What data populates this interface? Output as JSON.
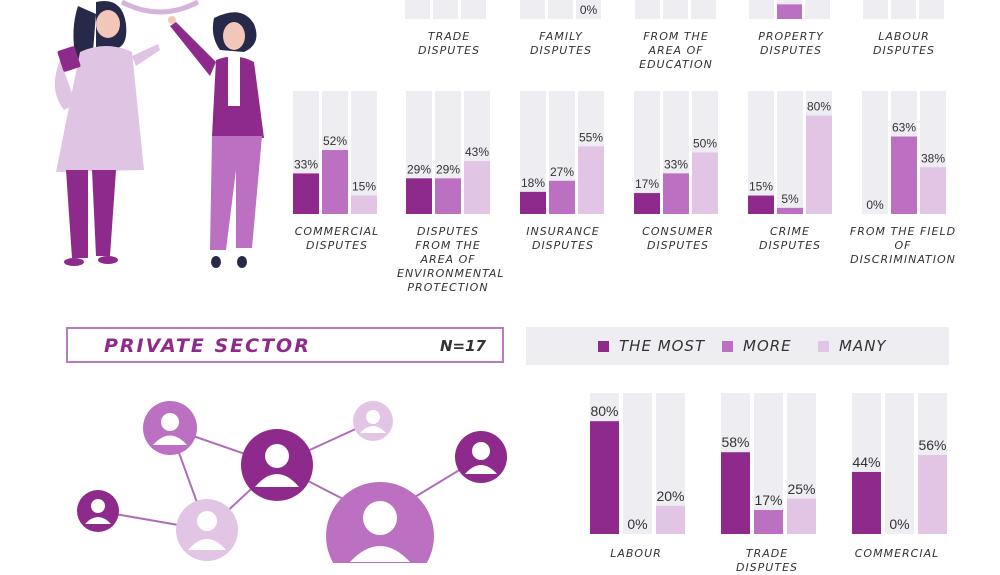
{
  "colors": {
    "most": "#8e2a8b",
    "more": "#bb70c2",
    "many": "#e2c4e4",
    "track": "#eeedf2"
  },
  "section": {
    "title": "PRIVATE SECTOR",
    "n": "N=17"
  },
  "legend": [
    "THE MOST",
    "MORE",
    "MANY"
  ],
  "chart_data": [
    {
      "type": "bar",
      "title": "",
      "series_names": [
        "THE MOST",
        "MORE",
        "MANY"
      ],
      "categories": [
        {
          "label": "TRADE DISPUTES",
          "values": [
            null,
            null,
            null
          ],
          "labels": [
            "",
            "",
            ""
          ]
        },
        {
          "label": "FAMILY DISPUTES",
          "values": [
            null,
            null,
            0
          ],
          "labels": [
            "",
            "",
            "0%"
          ]
        },
        {
          "label": "FROM THE AREA OF EDUCATION",
          "values": [
            null,
            null,
            null
          ],
          "labels": [
            "",
            "",
            ""
          ]
        },
        {
          "label": "PROPERTY DISPUTES",
          "values": [
            null,
            12,
            null
          ],
          "labels": [
            "",
            "12%",
            ""
          ]
        },
        {
          "label": "LABOUR DISPUTES",
          "values": [
            null,
            null,
            null
          ],
          "labels": [
            "",
            "",
            ""
          ]
        }
      ]
    },
    {
      "type": "bar",
      "title": "",
      "series_names": [
        "THE MOST",
        "MORE",
        "MANY"
      ],
      "categories": [
        {
          "label": "COMMERCIAL DISPUTES",
          "values": [
            33,
            52,
            15
          ]
        },
        {
          "label": "DISPUTES FROM THE AREA OF ENVIRONMENTAL PROTECTION",
          "values": [
            29,
            29,
            43
          ]
        },
        {
          "label": "INSURANCE DISPUTES",
          "values": [
            18,
            27,
            55
          ]
        },
        {
          "label": "CONSUMER DISPUTES",
          "values": [
            17,
            33,
            50
          ]
        },
        {
          "label": "CRIME DISPUTES",
          "values": [
            15,
            5,
            80
          ]
        },
        {
          "label": "FROM THE FIELD OF DISCRIMINATION",
          "values": [
            0,
            63,
            38
          ]
        }
      ]
    },
    {
      "type": "bar",
      "title": "PRIVATE SECTOR",
      "series_names": [
        "THE MOST",
        "MORE",
        "MANY"
      ],
      "categories": [
        {
          "label": "LABOUR",
          "values": [
            80,
            0,
            20
          ]
        },
        {
          "label": "TRADE DISPUTES",
          "values": [
            58,
            17,
            25
          ]
        },
        {
          "label": "COMMERCIAL",
          "values": [
            44,
            0,
            56
          ]
        }
      ]
    }
  ]
}
